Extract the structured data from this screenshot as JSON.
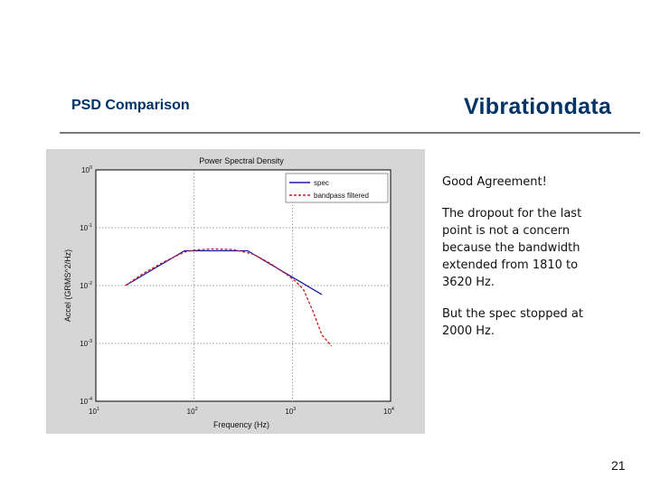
{
  "slide": {
    "title": "PSD Comparison",
    "brand": "Vibrationdata",
    "page_number": "21",
    "notes": [
      "Good Agreement!",
      "The dropout for the last point is not a concern because the bandwidth extended from 1810 to 3620 Hz.",
      "But the spec stopped at 2000 Hz."
    ]
  },
  "colors": {
    "brand": "#003366",
    "spec_line": "#1a1aa6",
    "filtered_line": "#cc1a1a",
    "figure_background": "#d6d6d6"
  },
  "chart_data": {
    "type": "line",
    "title": "Power Spectral Density",
    "xlabel": "Frequency (Hz)",
    "ylabel": "Accel (GRMS^2/Hz)",
    "x_scale": "log",
    "y_scale": "log",
    "xlim": [
      10,
      10000
    ],
    "ylim": [
      0.0001,
      1
    ],
    "x_ticks": [
      {
        "value": 10,
        "base": "10",
        "exp": "1"
      },
      {
        "value": 100,
        "base": "10",
        "exp": "2"
      },
      {
        "value": 1000,
        "base": "10",
        "exp": "3"
      },
      {
        "value": 10000,
        "base": "10",
        "exp": "4"
      }
    ],
    "y_ticks": [
      {
        "value": 1,
        "base": "10",
        "exp": "0"
      },
      {
        "value": 0.1,
        "base": "10",
        "exp": "-1"
      },
      {
        "value": 0.01,
        "base": "10",
        "exp": "-2"
      },
      {
        "value": 0.001,
        "base": "10",
        "exp": "-3"
      },
      {
        "value": 0.0001,
        "base": "10",
        "exp": "-4"
      }
    ],
    "grid": "major, dotted",
    "legend_position": "top-right",
    "series": [
      {
        "name": "spec",
        "style": "solid",
        "x": [
          20,
          80,
          350,
          2000
        ],
        "y": [
          0.01,
          0.04,
          0.04,
          0.007
        ]
      },
      {
        "name": "bandpass filtered",
        "style": "dashed",
        "x": [
          20,
          30,
          50,
          80,
          100,
          150,
          250,
          400,
          600,
          900,
          1100,
          1300,
          1600,
          2000,
          2500
        ],
        "y": [
          0.01,
          0.016,
          0.026,
          0.038,
          0.041,
          0.043,
          0.042,
          0.035,
          0.024,
          0.015,
          0.0115,
          0.0085,
          0.0038,
          0.0014,
          0.0009
        ]
      }
    ]
  }
}
